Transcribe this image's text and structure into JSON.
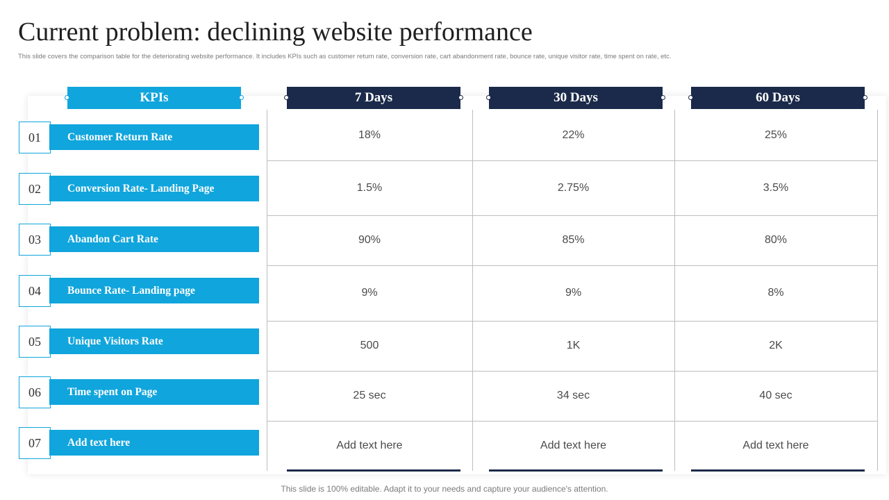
{
  "title": "Current problem: declining website performance",
  "subtitle": "This slide covers the comparison table for the deteriorating website performance. It includes KPIs  such as customer return rate, conversion rate, cart abandonment rate, bounce rate, unique visitor rate, time  spent on rate, etc.",
  "headers": {
    "kpi": "KPIs",
    "d7": "7 Days",
    "d30": "30 Days",
    "d60": "60 Days"
  },
  "rows": [
    {
      "num": "01",
      "label": "Customer Return Rate",
      "d7": "18%",
      "d30": "22%",
      "d60": "25%"
    },
    {
      "num": "02",
      "label": "Conversion Rate- Landing Page",
      "d7": "1.5%",
      "d30": "2.75%",
      "d60": "3.5%"
    },
    {
      "num": "03",
      "label": "Abandon Cart Rate",
      "d7": "90%",
      "d30": "85%",
      "d60": "80%"
    },
    {
      "num": "04",
      "label": "Bounce Rate- Landing page",
      "d7": "9%",
      "d30": "9%",
      "d60": "8%"
    },
    {
      "num": "05",
      "label": "Unique Visitors  Rate",
      "d7": "500",
      "d30": "1K",
      "d60": "2K"
    },
    {
      "num": "06",
      "label": "Time spent on Page",
      "d7": "25 sec",
      "d30": "34 sec",
      "d60": "40 sec"
    },
    {
      "num": "07",
      "label": "Add text here",
      "d7": "Add text here",
      "d30": "Add text here",
      "d60": "Add text here"
    }
  ],
  "footer": "This slide is 100% editable. Adapt it to your needs and capture your audience's attention.",
  "colors": {
    "accent": "#10a5dc",
    "dark": "#1b2a4a"
  }
}
